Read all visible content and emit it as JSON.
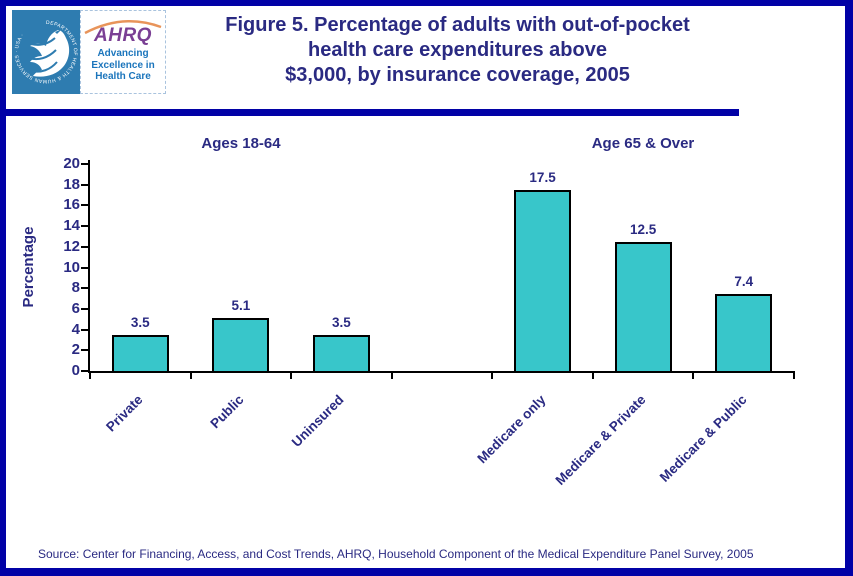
{
  "header": {
    "logo": {
      "hhs_ring_text": "DEPARTMENT OF HEALTH & HUMAN SERVICES · USA ·",
      "ahrq_acronym": "AHRQ",
      "ahrq_tagline": "Advancing\nExcellence in\nHealth Care"
    },
    "title": "Figure 5. Percentage of adults with out-of-pocket\nhealth care expenditures above\n$3,000, by insurance coverage, 2005"
  },
  "chart_data": {
    "type": "bar",
    "title": "",
    "ylabel": "Percentage",
    "ylim": [
      0,
      20
    ],
    "ytick_step": 2,
    "bar_color": "#38c6ca",
    "navy_text_color": "#2a2a82",
    "frame_color": "#0101a6",
    "legend": "none",
    "grid": "off",
    "groups": [
      {
        "label": "Ages 18-64",
        "categories": [
          "Private",
          "Public",
          "Uninsured"
        ],
        "values": [
          3.5,
          5.1,
          3.5
        ]
      },
      {
        "label": "Age 65 & Over",
        "categories": [
          "Medicare only",
          "Medicare & Private",
          "Medicare & Public"
        ],
        "values": [
          17.5,
          12.5,
          7.4
        ]
      }
    ]
  },
  "footer": {
    "source": "Source: Center for Financing, Access, and Cost Trends, AHRQ, Household Component of the Medical Expenditure Panel Survey, 2005"
  }
}
